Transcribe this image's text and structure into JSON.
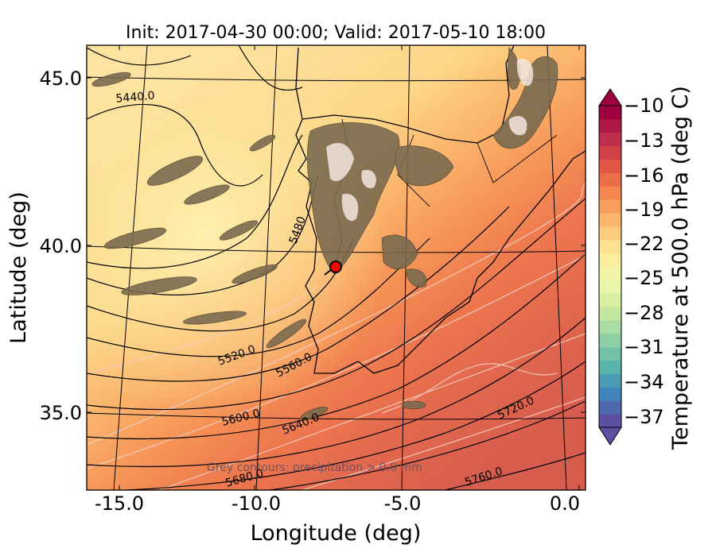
{
  "figure": {
    "title": "Init: 2017-04-30 00:00; Valid: 2017-05-10 18:00",
    "xlabel": "Longitude (deg)",
    "ylabel": "Latitude (deg)",
    "x_ticks": [
      "-15.0",
      "-10.0",
      "-5.0",
      "0.0"
    ],
    "y_ticks": [
      "45.0",
      "40.0",
      "35.0"
    ],
    "annotation": "Grey contours: precipitation > 0.0 mm"
  },
  "map": {
    "lon_range": [
      -16.0,
      0.2
    ],
    "lat_range": [
      32.5,
      46.0
    ],
    "marker": {
      "lon": -7.7,
      "lat": 39.3,
      "color": "#ff0000"
    },
    "height_contour_labels": [
      "5440.0",
      "5480",
      "5520.0",
      "5560.0",
      "5600.0",
      "5640.0",
      "5680.0",
      "5720.0",
      "5760.0"
    ]
  },
  "colorbar": {
    "label": "Temperature at 500.0 hPa (deg C)",
    "ticks": [
      "−10",
      "−13",
      "−16",
      "−19",
      "−22",
      "−25",
      "−28",
      "−31",
      "−34",
      "−37"
    ],
    "colors": [
      "#5e4fa2",
      "#3f86bc",
      "#5cb7a9",
      "#94d4a4",
      "#cdeb9d",
      "#f0f8a9",
      "#fee99c",
      "#fdbf6f",
      "#f88d52",
      "#e55a44",
      "#c1304a",
      "#9e0142"
    ]
  }
}
